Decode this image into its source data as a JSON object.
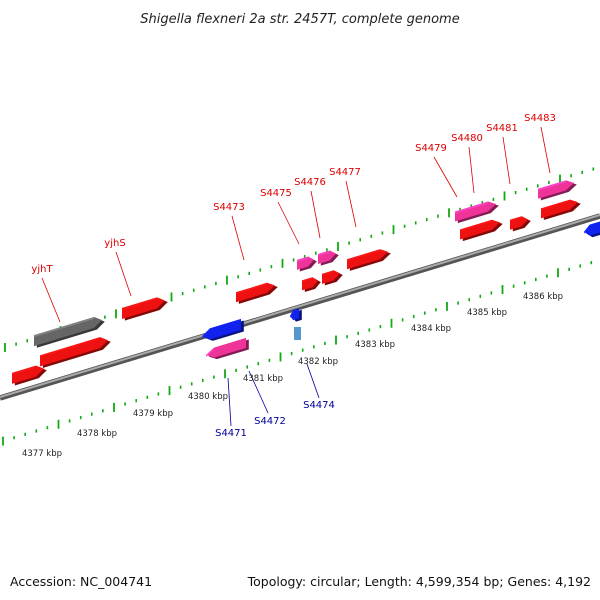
{
  "title": "Shigella flexneri 2a str. 2457T, complete genome",
  "footer": {
    "accession": "Accession: NC_004741",
    "summary": "Topology: circular; Length: 4,599,354 bp; Genes: 4,192"
  },
  "colors": {
    "forward_cds": "#ee1111",
    "forward_rna": "#ee3399",
    "reverse_cds": "#1122ee",
    "reverse_rna": "#ee3399",
    "other_gene": "#666666",
    "backbone": "#888888",
    "ticks": "#11aa11",
    "forward_label": "#dd0000",
    "reverse_label": "#000099"
  },
  "kbp_labels": [
    "4377 kbp",
    "4378 kbp",
    "4379 kbp",
    "4380 kbp",
    "4381 kbp",
    "4382 kbp",
    "4383 kbp",
    "4384 kbp",
    "4385 kbp",
    "4386 kbp"
  ],
  "gene_labels_forward": [
    "yjhT",
    "yjhS",
    "S4473",
    "S4475",
    "S4476",
    "S4477",
    "S4479",
    "S4480",
    "S4481",
    "S4483"
  ],
  "gene_labels_reverse": [
    "S4471",
    "S4472",
    "S4474"
  ]
}
